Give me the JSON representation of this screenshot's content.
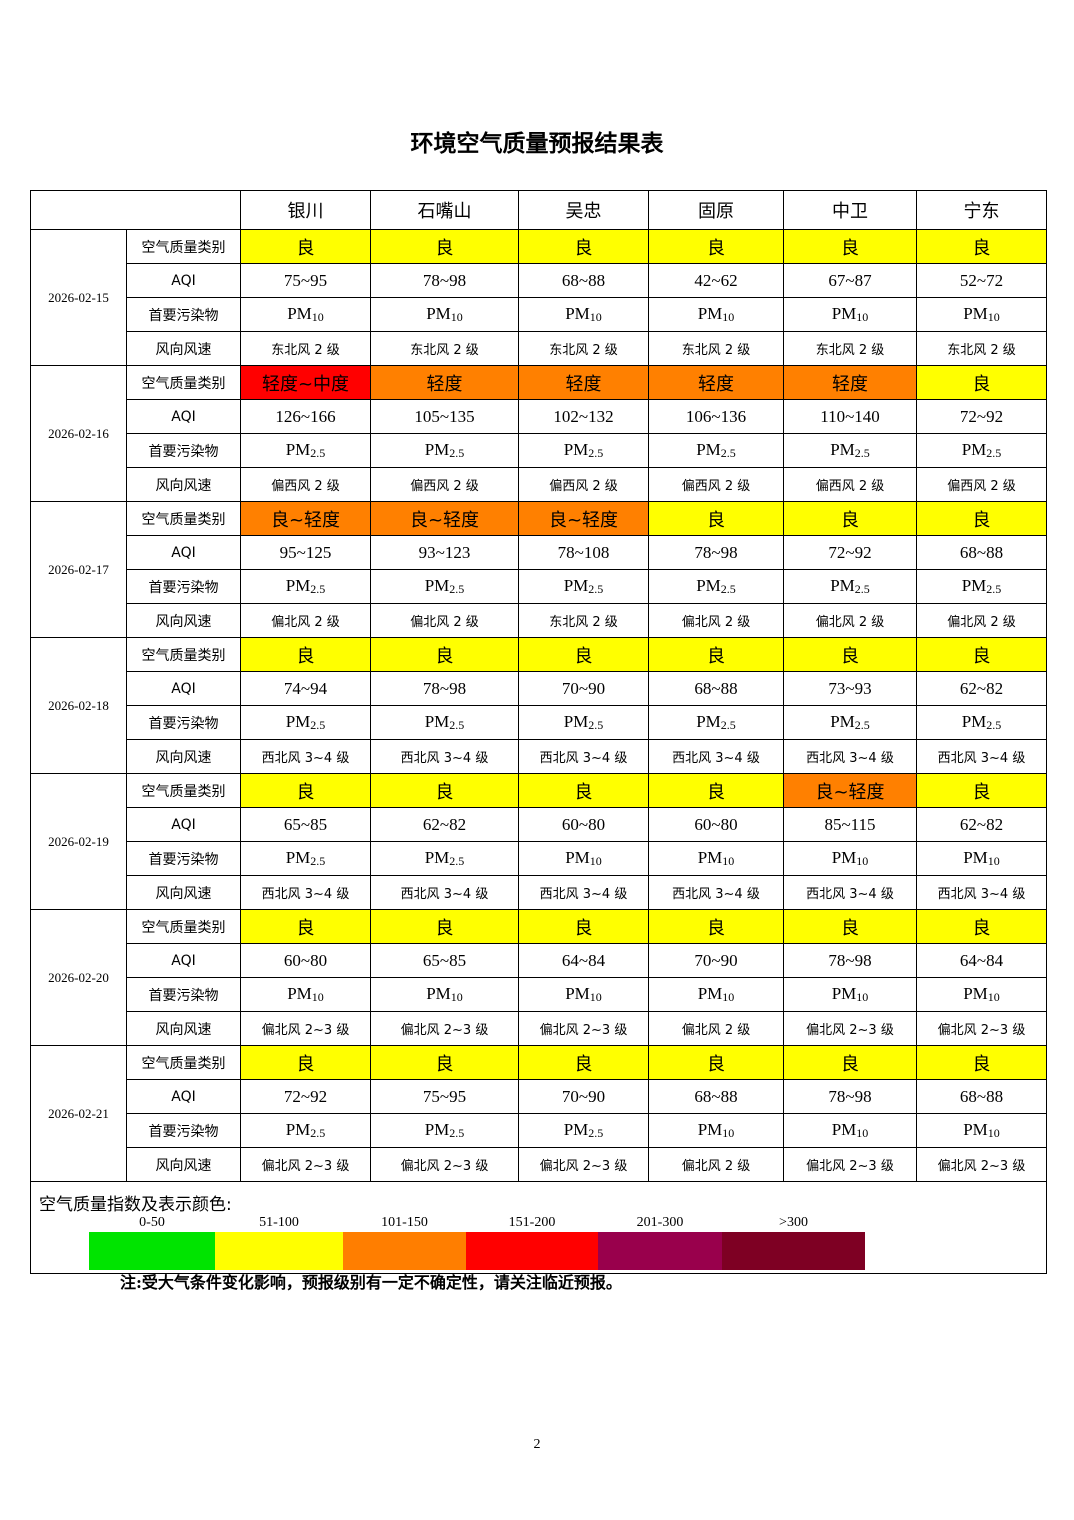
{
  "title": "环境空气质量预报结果表",
  "cities": [
    "银川",
    "石嘴山",
    "吴忠",
    "固原",
    "中卫",
    "宁东"
  ],
  "row_labels": {
    "category": "空气质量类别",
    "aqi": "AQI",
    "pollutant": "首要污染物",
    "wind": "风向风速"
  },
  "colors": {
    "良": "#ffff00",
    "良~轻度": "#ff8000",
    "轻度": "#ff8000",
    "轻度~中度": "#ff0000"
  },
  "days": [
    {
      "date": "2026-02-15",
      "category": [
        "良",
        "良",
        "良",
        "良",
        "良",
        "良"
      ],
      "aqi": [
        "75~95",
        "78~98",
        "68~88",
        "42~62",
        "67~87",
        "52~72"
      ],
      "pollutant": [
        [
          "PM",
          "10"
        ],
        [
          "PM",
          "10"
        ],
        [
          "PM",
          "10"
        ],
        [
          "PM",
          "10"
        ],
        [
          "PM",
          "10"
        ],
        [
          "PM",
          "10"
        ]
      ],
      "wind": [
        "东北风 2 级",
        "东北风 2 级",
        "东北风 2 级",
        "东北风 2 级",
        "东北风 2 级",
        "东北风 2 级"
      ]
    },
    {
      "date": "2026-02-16",
      "category": [
        "轻度~中度",
        "轻度",
        "轻度",
        "轻度",
        "轻度",
        "良"
      ],
      "aqi": [
        "126~166",
        "105~135",
        "102~132",
        "106~136",
        "110~140",
        "72~92"
      ],
      "pollutant": [
        [
          "PM",
          "2.5"
        ],
        [
          "PM",
          "2.5"
        ],
        [
          "PM",
          "2.5"
        ],
        [
          "PM",
          "2.5"
        ],
        [
          "PM",
          "2.5"
        ],
        [
          "PM",
          "2.5"
        ]
      ],
      "wind": [
        "偏西风 2 级",
        "偏西风 2 级",
        "偏西风 2 级",
        "偏西风 2 级",
        "偏西风 2 级",
        "偏西风 2 级"
      ]
    },
    {
      "date": "2026-02-17",
      "category": [
        "良~轻度",
        "良~轻度",
        "良~轻度",
        "良",
        "良",
        "良"
      ],
      "aqi": [
        "95~125",
        "93~123",
        "78~108",
        "78~98",
        "72~92",
        "68~88"
      ],
      "pollutant": [
        [
          "PM",
          "2.5"
        ],
        [
          "PM",
          "2.5"
        ],
        [
          "PM",
          "2.5"
        ],
        [
          "PM",
          "2.5"
        ],
        [
          "PM",
          "2.5"
        ],
        [
          "PM",
          "2.5"
        ]
      ],
      "wind": [
        "偏北风 2 级",
        "偏北风 2 级",
        "东北风 2 级",
        "偏北风 2 级",
        "偏北风 2 级",
        "偏北风 2 级"
      ]
    },
    {
      "date": "2026-02-18",
      "category": [
        "良",
        "良",
        "良",
        "良",
        "良",
        "良"
      ],
      "aqi": [
        "74~94",
        "78~98",
        "70~90",
        "68~88",
        "73~93",
        "62~82"
      ],
      "pollutant": [
        [
          "PM",
          "2.5"
        ],
        [
          "PM",
          "2.5"
        ],
        [
          "PM",
          "2.5"
        ],
        [
          "PM",
          "2.5"
        ],
        [
          "PM",
          "2.5"
        ],
        [
          "PM",
          "2.5"
        ]
      ],
      "wind": [
        "西北风 3~4 级",
        "西北风 3~4 级",
        "西北风 3~4 级",
        "西北风 3~4 级",
        "西北风 3~4 级",
        "西北风 3~4 级"
      ]
    },
    {
      "date": "2026-02-19",
      "category": [
        "良",
        "良",
        "良",
        "良",
        "良~轻度",
        "良"
      ],
      "aqi": [
        "65~85",
        "62~82",
        "60~80",
        "60~80",
        "85~115",
        "62~82"
      ],
      "pollutant": [
        [
          "PM",
          "2.5"
        ],
        [
          "PM",
          "2.5"
        ],
        [
          "PM",
          "10"
        ],
        [
          "PM",
          "10"
        ],
        [
          "PM",
          "10"
        ],
        [
          "PM",
          "10"
        ]
      ],
      "wind": [
        "西北风 3~4 级",
        "西北风 3~4 级",
        "西北风 3~4 级",
        "西北风 3~4 级",
        "西北风 3~4 级",
        "西北风 3~4 级"
      ]
    },
    {
      "date": "2026-02-20",
      "category": [
        "良",
        "良",
        "良",
        "良",
        "良",
        "良"
      ],
      "aqi": [
        "60~80",
        "65~85",
        "64~84",
        "70~90",
        "78~98",
        "64~84"
      ],
      "pollutant": [
        [
          "PM",
          "10"
        ],
        [
          "PM",
          "10"
        ],
        [
          "PM",
          "10"
        ],
        [
          "PM",
          "10"
        ],
        [
          "PM",
          "10"
        ],
        [
          "PM",
          "10"
        ]
      ],
      "wind": [
        "偏北风 2~3 级",
        "偏北风 2~3 级",
        "偏北风 2~3 级",
        "偏北风 2 级",
        "偏北风 2~3 级",
        "偏北风 2~3 级"
      ]
    },
    {
      "date": "2026-02-21",
      "category": [
        "良",
        "良",
        "良",
        "良",
        "良",
        "良"
      ],
      "aqi": [
        "72~92",
        "75~95",
        "70~90",
        "68~88",
        "78~98",
        "68~88"
      ],
      "pollutant": [
        [
          "PM",
          "2.5"
        ],
        [
          "PM",
          "2.5"
        ],
        [
          "PM",
          "2.5"
        ],
        [
          "PM",
          "10"
        ],
        [
          "PM",
          "10"
        ],
        [
          "PM",
          "10"
        ]
      ],
      "wind": [
        "偏北风 2~3 级",
        "偏北风 2~3 级",
        "偏北风 2~3 级",
        "偏北风 2 级",
        "偏北风 2~3 级",
        "偏北风 2~3 级"
      ]
    }
  ],
  "legend": {
    "title": "空气质量指数及表示颜色:",
    "items": [
      {
        "range": "0-50",
        "color": "#00e400"
      },
      {
        "range": "51-100",
        "color": "#ffff00"
      },
      {
        "range": "101-150",
        "color": "#ff7e00"
      },
      {
        "range": "151-200",
        "color": "#ff0000"
      },
      {
        "range": "201-300",
        "color": "#99004c"
      },
      {
        "range": ">300",
        "color": "#7e0023"
      }
    ]
  },
  "note": "注:受大气条件变化影响，预报级别有一定不确定性，请关注临近预报。",
  "page_number": "2"
}
